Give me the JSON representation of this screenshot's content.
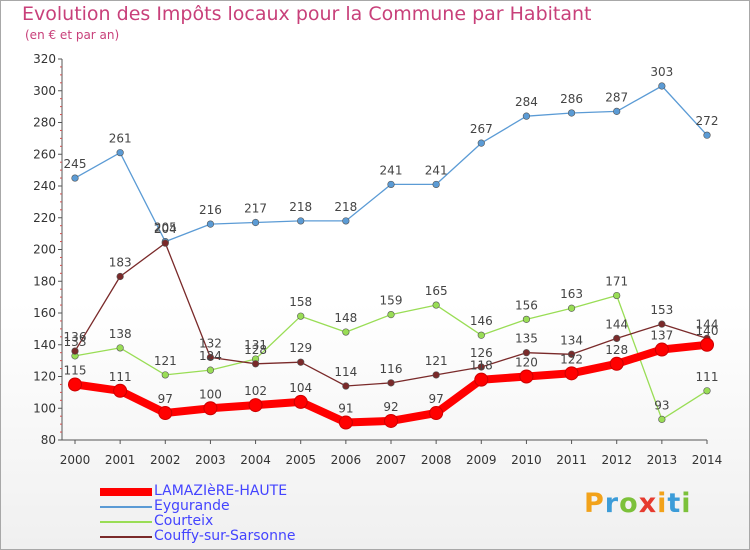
{
  "title": "Evolution des Impôts locaux pour la Commune par Habitant",
  "subtitle": "(en € et par an)",
  "logo": {
    "text": "Proxiti",
    "colors": [
      "#f2a21a",
      "#3c9cd8",
      "#7cc13a",
      "#e63a2e"
    ]
  },
  "chart_data": {
    "type": "line",
    "x": [
      "2000",
      "2001",
      "2002",
      "2003",
      "2004",
      "2005",
      "2006",
      "2007",
      "2008",
      "2009",
      "2010",
      "2011",
      "2012",
      "2013",
      "2014"
    ],
    "ylim": [
      80,
      320
    ],
    "yticks": [
      80,
      100,
      120,
      140,
      160,
      180,
      200,
      220,
      240,
      260,
      280,
      300,
      320
    ],
    "grid": false,
    "legend_position": "bottom-left",
    "series": [
      {
        "name": "LAMAZIèRE-HAUTE",
        "color": "#ff0000",
        "values": [
          115,
          111,
          97,
          100,
          102,
          104,
          91,
          92,
          97,
          118,
          120,
          122,
          128,
          137,
          140
        ],
        "labels": [
          "115",
          "111",
          "97",
          "100",
          "102",
          "104",
          "91",
          "92",
          "97",
          "118",
          "120",
          "122",
          "128",
          "137",
          "140"
        ]
      },
      {
        "name": "Eygurande",
        "color": "#5b9bd5",
        "values": [
          245,
          261,
          205,
          216,
          217,
          218,
          218,
          241,
          241,
          267,
          284,
          286,
          287,
          303,
          272
        ],
        "labels": [
          "245",
          "261",
          "205",
          "216",
          "217",
          "218",
          "218",
          "241",
          "241",
          "267",
          "284",
          "286",
          "287",
          "303",
          "272"
        ]
      },
      {
        "name": "Courteix",
        "color": "#99dd55",
        "values": [
          133,
          138,
          121,
          124,
          131,
          158,
          148,
          159,
          165,
          146,
          156,
          163,
          171,
          93,
          111
        ],
        "labels": [
          "133",
          "138",
          "121",
          "124",
          "131",
          "158",
          "148",
          "159",
          "165",
          "146",
          "156",
          "163",
          "171",
          "93",
          "111"
        ]
      },
      {
        "name": "Couffy-sur-Sarsonne",
        "color": "#7a2a2a",
        "values": [
          136,
          183,
          204,
          132,
          128,
          129,
          114,
          116,
          121,
          126,
          135,
          134,
          144,
          153,
          144
        ],
        "labels": [
          "136",
          "183",
          "204",
          "132",
          "128",
          "129",
          "114",
          "116",
          "121",
          "126",
          "135",
          "134",
          "144",
          "153",
          "144"
        ]
      }
    ]
  }
}
